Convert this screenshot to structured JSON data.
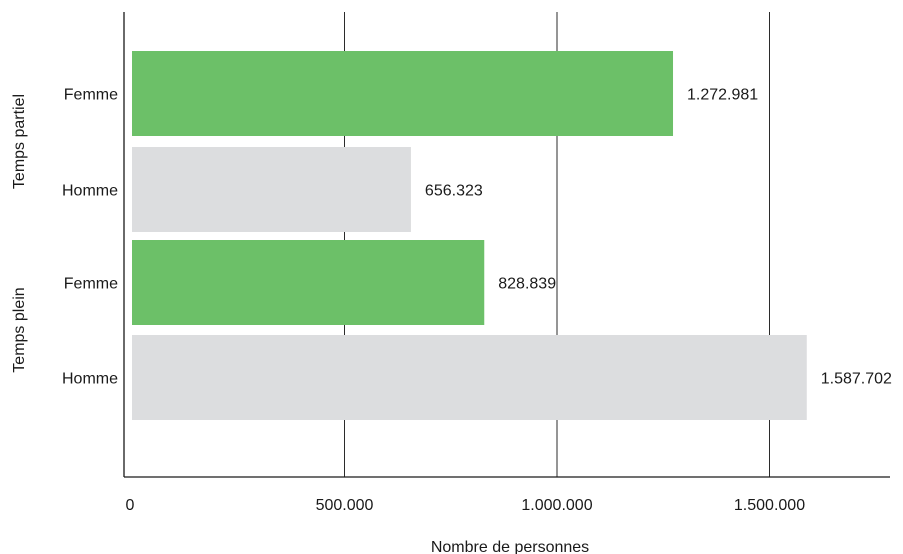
{
  "chart_data": {
    "type": "bar",
    "orientation": "horizontal",
    "xlabel": "Nombre de personnes",
    "xlim": [
      0,
      1800000
    ],
    "x_ticks": [
      {
        "value": 0,
        "label": "0"
      },
      {
        "value": 500000,
        "label": "500.000"
      },
      {
        "value": 1000000,
        "label": "1.000.000"
      },
      {
        "value": 1500000,
        "label": "1.500.000"
      }
    ],
    "groups": [
      {
        "label": "Temps partiel",
        "bars": [
          {
            "category": "Femme",
            "value": 1272981,
            "value_label": "1.272.981",
            "color": "#6cc068"
          },
          {
            "category": "Homme",
            "value": 656323,
            "value_label": "656.323",
            "color": "#dcdddf"
          }
        ]
      },
      {
        "label": "Temps plein",
        "bars": [
          {
            "category": "Femme",
            "value": 828839,
            "value_label": "828.839",
            "color": "#6cc068"
          },
          {
            "category": "Homme",
            "value": 1587702,
            "value_label": "1.587.702",
            "color": "#dcdddf"
          }
        ]
      }
    ],
    "grid": "vertical",
    "legend": "none"
  }
}
